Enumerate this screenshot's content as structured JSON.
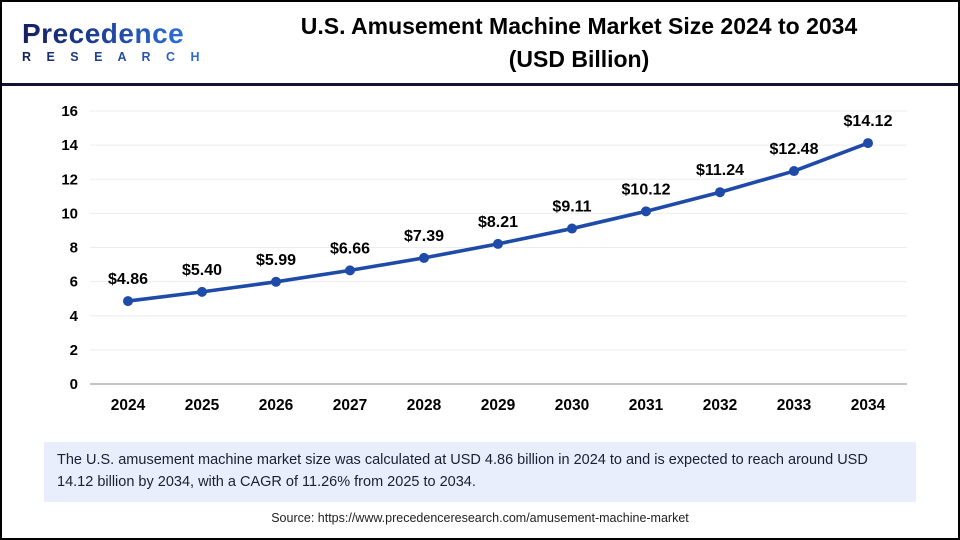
{
  "header": {
    "logo_name": "Precedence",
    "logo_sub": "R E S E A R C H",
    "title_line1": "U.S. Amusement Machine Market Size 2024 to 2034",
    "title_line2": "(USD Billion)"
  },
  "chart_data": {
    "type": "line",
    "title": "U.S. Amusement Machine Market Size 2024 to 2034 (USD Billion)",
    "categories": [
      "2024",
      "2025",
      "2026",
      "2027",
      "2028",
      "2029",
      "2030",
      "2031",
      "2032",
      "2033",
      "2034"
    ],
    "values": [
      4.86,
      5.4,
      5.99,
      6.66,
      7.39,
      8.21,
      9.11,
      10.12,
      11.24,
      12.48,
      14.12
    ],
    "point_labels": [
      "$4.86",
      "$5.40",
      "$5.99",
      "$6.66",
      "$7.39",
      "$8.21",
      "$9.11",
      "$10.12",
      "$11.24",
      "$12.48",
      "$14.12"
    ],
    "xlabel": "",
    "ylabel": "",
    "ylim": [
      0,
      16
    ],
    "ytick_step": 2,
    "grid": true,
    "legend": "none",
    "line_color": "#1e4aa8",
    "marker": "circle",
    "gridline_color": "#ededed",
    "baseline_color": "#b3b3b3"
  },
  "footer": {
    "note": "The U.S. amusement machine market size was calculated at USD 4.86  billion in 2024 to and is expected to reach around USD 14.12 billion by 2034, with a CAGR of 11.26% from 2025 to 2034.",
    "source": "Source: https://www.precedenceresearch.com/amusement-machine-market"
  }
}
